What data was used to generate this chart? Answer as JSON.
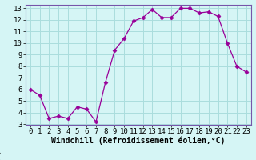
{
  "x": [
    0,
    1,
    2,
    3,
    4,
    5,
    6,
    7,
    8,
    9,
    10,
    11,
    12,
    13,
    14,
    15,
    16,
    17,
    18,
    19,
    20,
    21,
    22,
    23
  ],
  "y": [
    6.0,
    5.5,
    3.5,
    3.7,
    3.5,
    4.5,
    4.3,
    3.2,
    6.6,
    9.4,
    10.4,
    11.9,
    12.2,
    12.9,
    12.2,
    12.2,
    13.0,
    13.0,
    12.6,
    12.7,
    12.3,
    10.0,
    8.0,
    7.5
  ],
  "line_color": "#990099",
  "marker": "D",
  "marker_size": 2.5,
  "bg_color": "#d5f5f5",
  "grid_color": "#aadddd",
  "xlabel": "Windchill (Refroidissement éolien,°C)",
  "ylabel": "",
  "ylim": [
    3,
    13
  ],
  "yticks": [
    3,
    4,
    5,
    6,
    7,
    8,
    9,
    10,
    11,
    12,
    13
  ],
  "xticks": [
    0,
    1,
    2,
    3,
    4,
    5,
    6,
    7,
    8,
    9,
    10,
    11,
    12,
    13,
    14,
    15,
    16,
    17,
    18,
    19,
    20,
    21,
    22,
    23
  ],
  "xlabel_fontsize": 7,
  "tick_fontsize": 6.5,
  "spine_color": "#7755aa",
  "bottom_bar_color": "#7755aa"
}
